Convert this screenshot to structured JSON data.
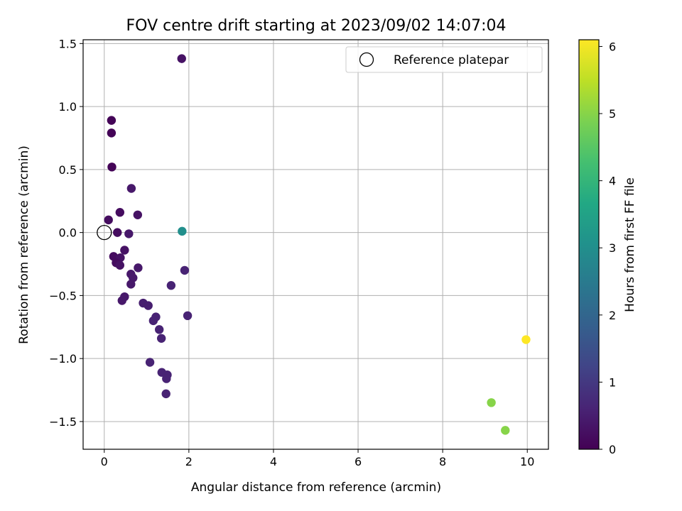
{
  "chart_data": {
    "type": "scatter",
    "title": "FOV centre drift starting at 2023/09/02 14:07:04",
    "xlabel": "Angular distance from reference (arcmin)",
    "ylabel": "Rotation from reference (arcmin)",
    "xlim": [
      -0.5,
      10.5
    ],
    "ylim": [
      -1.72,
      1.53
    ],
    "x_ticks": [
      0,
      2,
      4,
      6,
      8,
      10
    ],
    "x_tick_labels": [
      "0",
      "2",
      "4",
      "6",
      "8",
      "10"
    ],
    "y_ticks": [
      -1.5,
      -1.0,
      -0.5,
      0.0,
      0.5,
      1.0,
      1.5
    ],
    "y_tick_labels": [
      "−1.5",
      "−1.0",
      "−0.5",
      "0.0",
      "0.5",
      "1.0",
      "1.5"
    ],
    "grid": true,
    "legend_position": "top-right",
    "legend": [
      "Reference platepar"
    ],
    "reference_point": {
      "x": 0.0,
      "y": 0.0
    },
    "colorbar": {
      "label": "Hours from first FF file",
      "range": [
        0,
        6.1
      ],
      "ticks": [
        0,
        1,
        2,
        3,
        4,
        5,
        6
      ],
      "tick_labels": [
        "0",
        "1",
        "2",
        "3",
        "4",
        "5",
        "6"
      ],
      "colormap": "viridis"
    },
    "points": [
      {
        "x": 1.83,
        "y": 1.38,
        "c": 0.3
      },
      {
        "x": 0.17,
        "y": 0.89,
        "c": 0.05
      },
      {
        "x": 0.17,
        "y": 0.79,
        "c": 0.05
      },
      {
        "x": 0.18,
        "y": 0.52,
        "c": 0.05
      },
      {
        "x": 0.64,
        "y": 0.35,
        "c": 0.4
      },
      {
        "x": 0.37,
        "y": 0.16,
        "c": 0.2
      },
      {
        "x": 0.79,
        "y": 0.14,
        "c": 0.3
      },
      {
        "x": 0.1,
        "y": 0.1,
        "c": 0.2
      },
      {
        "x": 0.31,
        "y": 0.0,
        "c": 0.2
      },
      {
        "x": 0.58,
        "y": -0.01,
        "c": 0.4
      },
      {
        "x": 1.84,
        "y": 0.01,
        "c": 3.0
      },
      {
        "x": 0.48,
        "y": -0.14,
        "c": 0.3
      },
      {
        "x": 0.22,
        "y": -0.19,
        "c": 0.2
      },
      {
        "x": 0.38,
        "y": -0.2,
        "c": 0.3
      },
      {
        "x": 0.28,
        "y": -0.24,
        "c": 0.2
      },
      {
        "x": 0.37,
        "y": -0.26,
        "c": 0.3
      },
      {
        "x": 0.8,
        "y": -0.28,
        "c": 0.4
      },
      {
        "x": 1.9,
        "y": -0.3,
        "c": 0.6
      },
      {
        "x": 0.63,
        "y": -0.33,
        "c": 0.4
      },
      {
        "x": 0.68,
        "y": -0.36,
        "c": 0.4
      },
      {
        "x": 0.63,
        "y": -0.41,
        "c": 0.4
      },
      {
        "x": 1.58,
        "y": -0.42,
        "c": 0.6
      },
      {
        "x": 0.48,
        "y": -0.51,
        "c": 0.4
      },
      {
        "x": 0.42,
        "y": -0.54,
        "c": 0.4
      },
      {
        "x": 0.92,
        "y": -0.56,
        "c": 0.5
      },
      {
        "x": 1.04,
        "y": -0.58,
        "c": 0.5
      },
      {
        "x": 1.22,
        "y": -0.67,
        "c": 0.6
      },
      {
        "x": 1.97,
        "y": -0.66,
        "c": 0.6
      },
      {
        "x": 1.16,
        "y": -0.7,
        "c": 0.6
      },
      {
        "x": 1.3,
        "y": -0.77,
        "c": 0.6
      },
      {
        "x": 1.35,
        "y": -0.84,
        "c": 0.6
      },
      {
        "x": 1.08,
        "y": -1.03,
        "c": 0.6
      },
      {
        "x": 1.36,
        "y": -1.11,
        "c": 0.6
      },
      {
        "x": 1.49,
        "y": -1.13,
        "c": 0.6
      },
      {
        "x": 1.47,
        "y": -1.16,
        "c": 0.6
      },
      {
        "x": 1.46,
        "y": -1.28,
        "c": 0.6
      },
      {
        "x": 9.15,
        "y": -1.35,
        "c": 5.0
      },
      {
        "x": 9.48,
        "y": -1.57,
        "c": 5.0
      },
      {
        "x": 9.97,
        "y": -0.85,
        "c": 6.1
      }
    ]
  }
}
